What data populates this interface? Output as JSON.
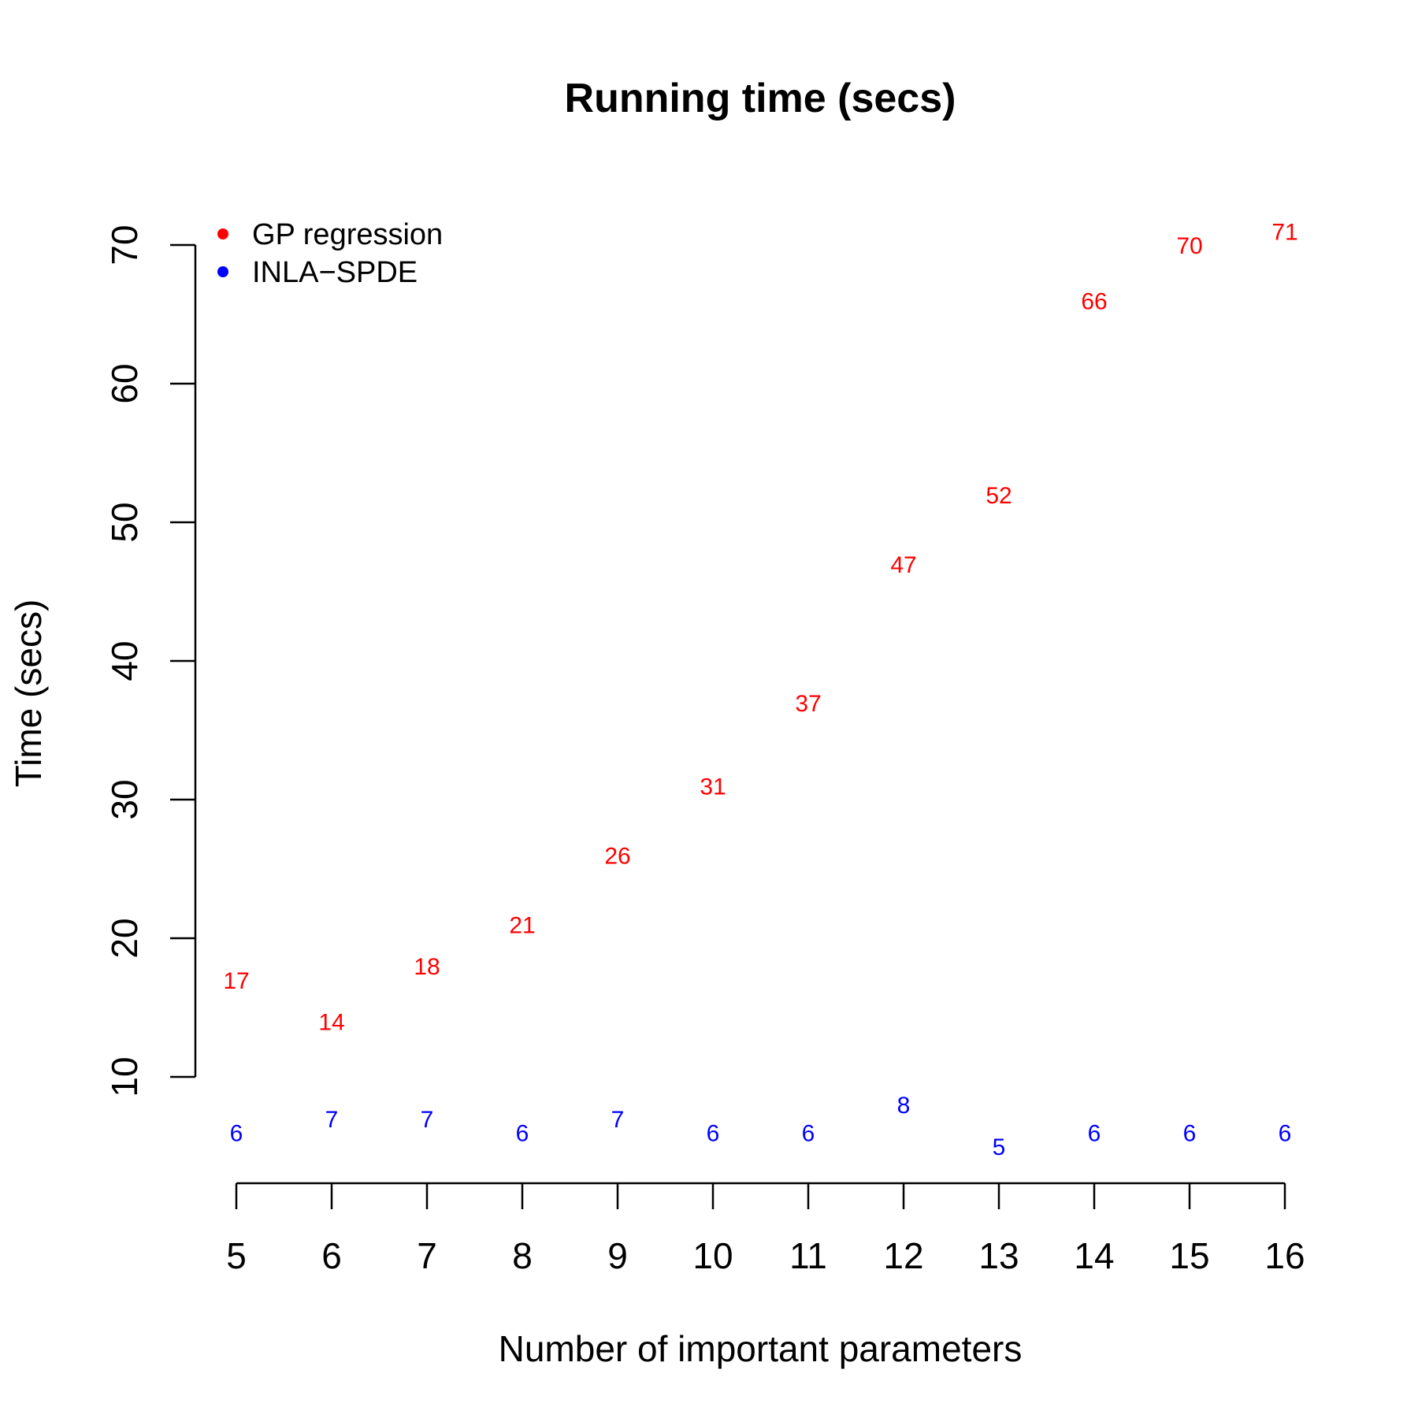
{
  "chart_data": {
    "type": "scatter",
    "title": "Running time (secs)",
    "xlabel": "Number of important parameters",
    "ylabel": "Time (secs)",
    "x": [
      5,
      6,
      7,
      8,
      9,
      10,
      11,
      12,
      13,
      14,
      15,
      16
    ],
    "xticks": [
      "5",
      "6",
      "7",
      "8",
      "9",
      "10",
      "11",
      "12",
      "13",
      "14",
      "15",
      "16"
    ],
    "yticks": [
      "10",
      "20",
      "30",
      "40",
      "50",
      "60",
      "70"
    ],
    "ylim": [
      10,
      70
    ],
    "legend_position": "top-left",
    "marker_style": "text labels of the values",
    "series": [
      {
        "name": "GP regression",
        "color": "#ff0000",
        "values": [
          17,
          14,
          18,
          21,
          26,
          31,
          37,
          47,
          52,
          66,
          70,
          71
        ]
      },
      {
        "name": "INLA−SPDE",
        "color": "#0000ff",
        "values": [
          6,
          7,
          7,
          6,
          7,
          6,
          6,
          8,
          5,
          6,
          6,
          6
        ]
      }
    ]
  }
}
